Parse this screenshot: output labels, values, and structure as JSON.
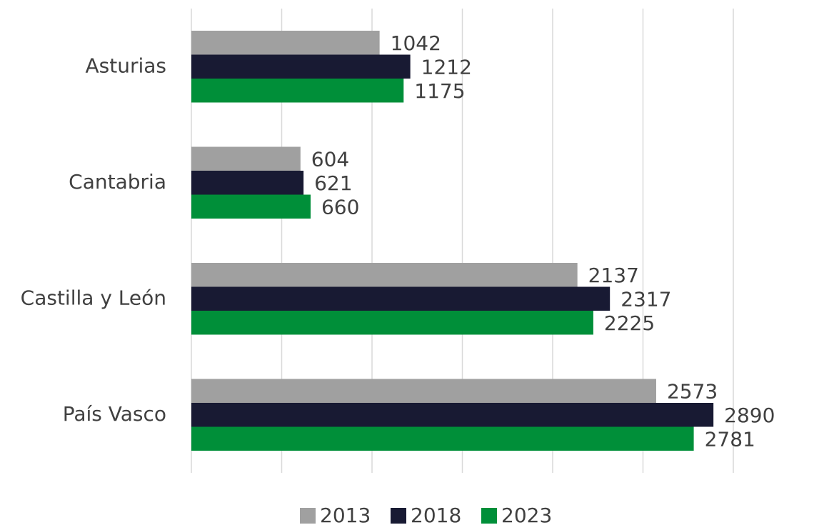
{
  "chart_data": {
    "type": "hbar",
    "categories": [
      "Asturias",
      "Cantabria",
      "Castilla y León",
      "País Vasco"
    ],
    "series": [
      {
        "name": "2013",
        "color": "#a0a0a0",
        "values": [
          1042,
          604,
          2137,
          2573
        ]
      },
      {
        "name": "2018",
        "color": "#181a33",
        "values": [
          1212,
          621,
          2317,
          2890
        ]
      },
      {
        "name": "2023",
        "color": "#008f39",
        "values": [
          1175,
          660,
          2225,
          2781
        ]
      }
    ],
    "xlim": [
      0,
      3000
    ],
    "xticks": [
      0,
      500,
      1000,
      1500,
      2000,
      2500,
      3000
    ],
    "grid": true,
    "legend": "bottom"
  }
}
